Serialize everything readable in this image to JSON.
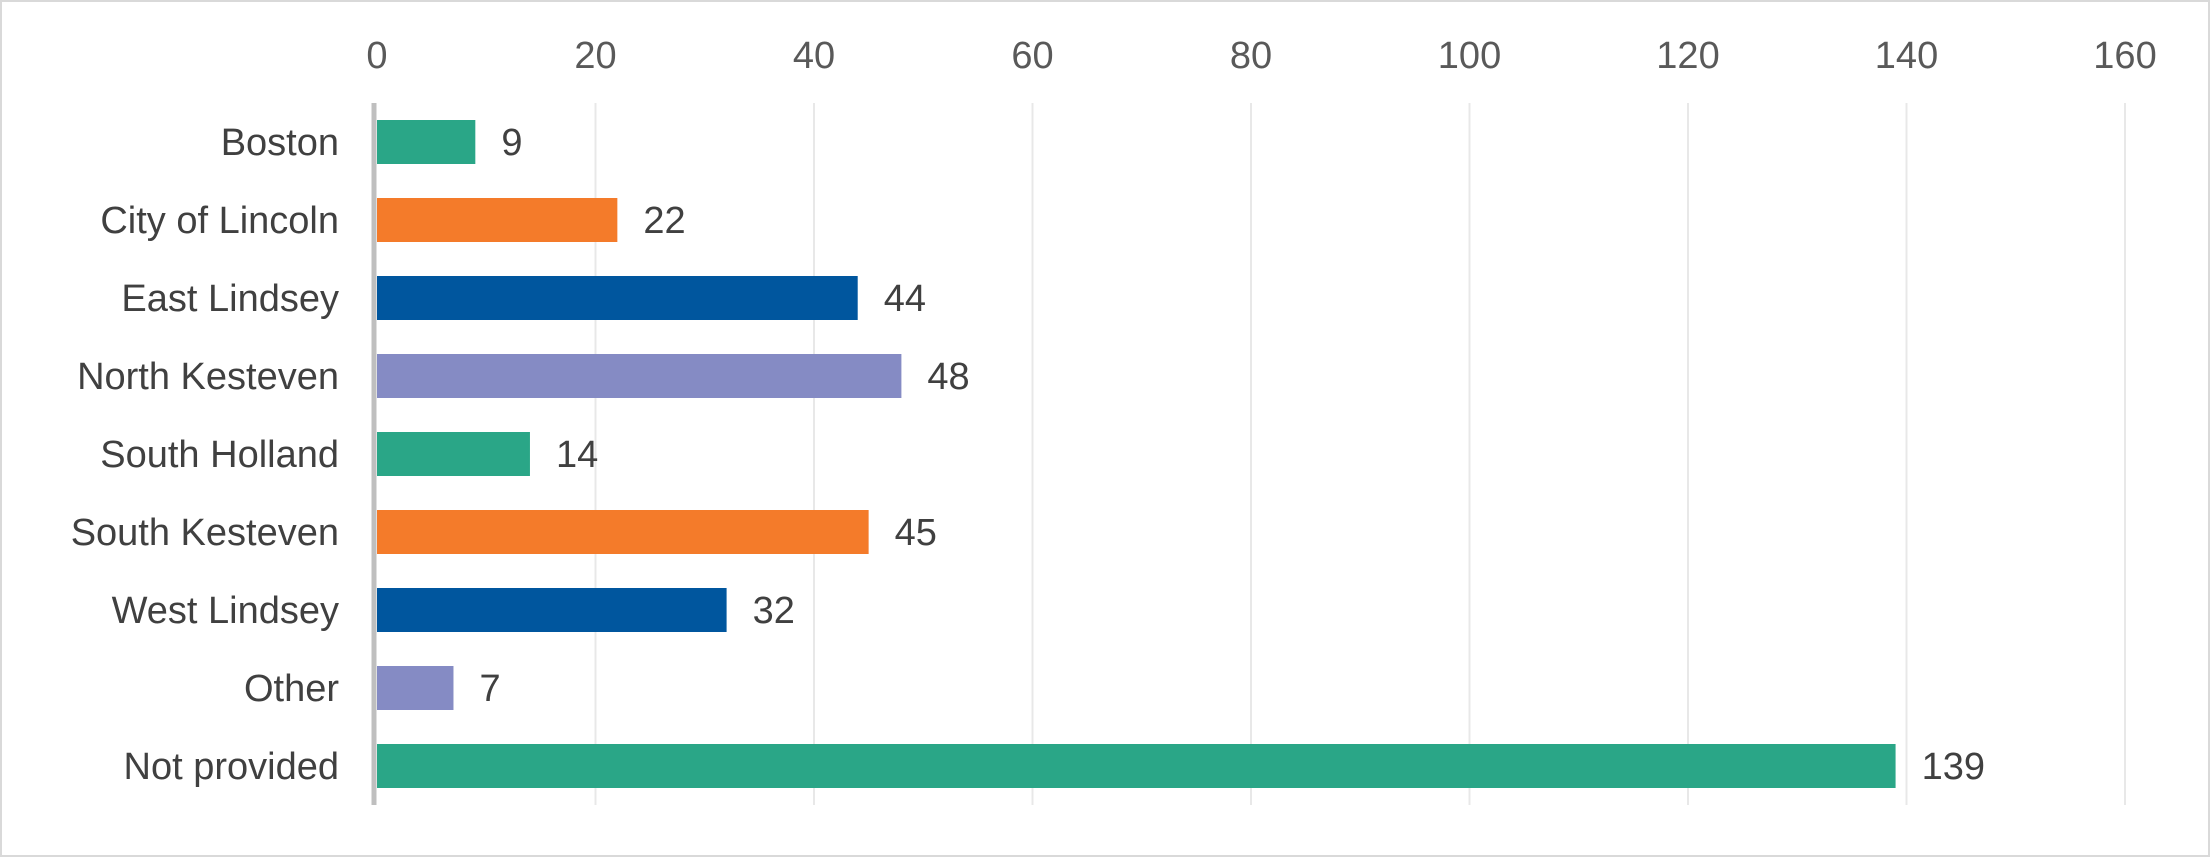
{
  "chart_data": {
    "type": "bar",
    "orientation": "horizontal",
    "categories": [
      "Boston",
      "City of Lincoln",
      "East Lindsey",
      "North Kesteven",
      "South Holland",
      "South Kesteven",
      "West Lindsey",
      "Other",
      "Not provided"
    ],
    "values": [
      9,
      22,
      44,
      48,
      14,
      45,
      32,
      7,
      139
    ],
    "bar_colors": [
      "#2aa687",
      "#f47b2a",
      "#00569e",
      "#858bc4",
      "#2aa687",
      "#f47b2a",
      "#00569e",
      "#858bc4",
      "#2aa687"
    ],
    "xlim": [
      0,
      160
    ],
    "x_ticks": [
      0,
      20,
      40,
      60,
      80,
      100,
      120,
      140,
      160
    ],
    "x_tick_labels": [
      "0",
      "20",
      "40",
      "60",
      "80",
      "100",
      "120",
      "140",
      "160"
    ],
    "x_axis_position": "top",
    "grid": true,
    "legend": "none",
    "title": "",
    "xlabel": "",
    "ylabel": ""
  }
}
